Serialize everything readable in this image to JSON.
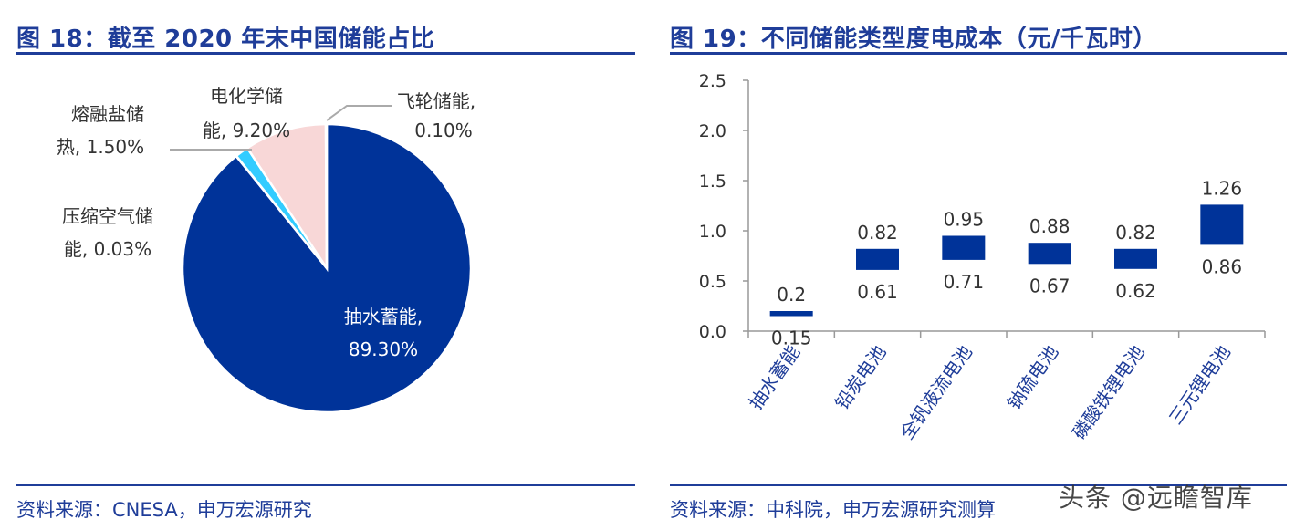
{
  "left": {
    "title": "图 18：截至 2020 年末中国储能占比",
    "source": "资料来源：CNESA，申万宏源研究"
  },
  "right": {
    "title": "图 19：不同储能类型度电成本（元/千瓦时）",
    "source": "资料来源：中科院，申万宏源研究测算"
  },
  "watermark": "头条 @远瞻智库",
  "colors": {
    "navy": "#003399",
    "light_blue": "#33ccff",
    "pink": "#f8d7d7",
    "title_blue": "#1f3d99"
  },
  "chart_data": [
    {
      "type": "pie",
      "slices": [
        {
          "label_line1": "抽水蓄能,",
          "label_line2": "89.30%",
          "value": 89.3,
          "color": "#003399"
        },
        {
          "label_line1": "压缩空气储",
          "label_line2": "能, 0.03%",
          "value": 0.03,
          "color": "#003399"
        },
        {
          "label_line1": "熔融盐储",
          "label_line2": "热, 1.50%",
          "value": 1.5,
          "color": "#33ccff"
        },
        {
          "label_line1": "电化学储",
          "label_line2": "能, 9.20%",
          "value": 9.2,
          "color": "#f8d7d7"
        },
        {
          "label_line1": "飞轮储能,",
          "label_line2": "0.10%",
          "value": 0.1,
          "color": "#f8d7d7"
        }
      ]
    },
    {
      "type": "bar",
      "categories": [
        "抽水蓄能",
        "铅炭电池",
        "全钒液流电池",
        "钠硫电池",
        "磷酸铁锂电池",
        "三元锂电池"
      ],
      "low": [
        0.15,
        0.61,
        0.71,
        0.67,
        0.62,
        0.86
      ],
      "high": [
        0.2,
        0.82,
        0.95,
        0.88,
        0.82,
        1.26
      ],
      "low_labels": [
        "0.15",
        "0.61",
        "0.71",
        "0.67",
        "0.62",
        "0.86"
      ],
      "high_labels": [
        "0.2",
        "0.82",
        "0.95",
        "0.88",
        "0.82",
        "1.26"
      ],
      "ylim": [
        0,
        2.5
      ],
      "yticks": [
        "0.0",
        "0.5",
        "1.0",
        "1.5",
        "2.0",
        "2.5"
      ],
      "color": "#003399"
    }
  ]
}
